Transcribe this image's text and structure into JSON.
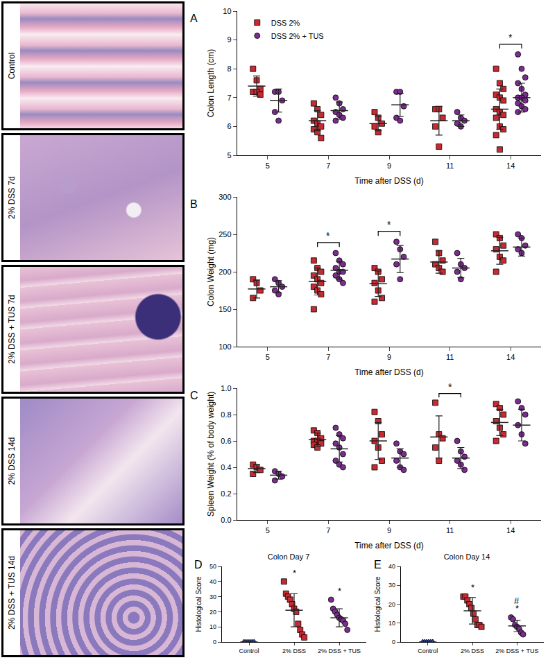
{
  "images": {
    "panels": [
      {
        "label": "Control"
      },
      {
        "label": "2% DSS 7d"
      },
      {
        "label": "2% DSS + TUS 7d"
      },
      {
        "label": "2% DSS 14d"
      },
      {
        "label": "2% DSS + TUS 14d"
      }
    ]
  },
  "chart_data": [
    {
      "type": "scatter",
      "label": "A",
      "x_label": "Time after DSS (d)",
      "y_label": "Colon Length (cm)",
      "categories": [
        "5",
        "7",
        "9",
        "11",
        "14"
      ],
      "ylim": [
        5,
        10
      ],
      "yticks": [
        5,
        6,
        7,
        8,
        9,
        10
      ],
      "legend": "top left",
      "series": [
        {
          "name": "DSS 2%",
          "color": "#c62a32",
          "marker": "square",
          "points": [
            [
              8.0,
              7.6,
              7.3,
              7.2,
              7.2,
              7.1
            ],
            [
              6.8,
              6.6,
              6.4,
              6.2,
              6.1,
              6.0,
              5.9,
              5.8,
              5.6
            ],
            [
              6.5,
              6.3,
              6.1,
              6.0,
              5.8
            ],
            [
              6.6,
              6.6,
              6.3,
              6.0,
              5.3
            ],
            [
              8.0,
              7.5,
              7.3,
              7.1,
              7.0,
              6.9,
              6.6,
              6.5,
              6.4,
              6.3,
              6.0,
              5.9,
              5.7,
              5.2
            ]
          ],
          "values": [
            7.4,
            6.2,
            6.1,
            6.2,
            6.6
          ],
          "error": [
            0.35,
            0.35,
            0.25,
            0.5,
            0.7
          ]
        },
        {
          "name": "DSS 2% + TUS",
          "color": "#7b2d8e",
          "marker": "circle",
          "points": [
            [
              7.2,
              7.2,
              6.9,
              6.5,
              6.2
            ],
            [
              7.0,
              6.8,
              6.6,
              6.5,
              6.4,
              6.3,
              6.2
            ],
            [
              7.2,
              7.2,
              6.7,
              6.3,
              6.2
            ],
            [
              6.5,
              6.3,
              6.2,
              6.1,
              6.0
            ],
            [
              8.5,
              8.0,
              7.7,
              7.5,
              7.3,
              7.1,
              7.0,
              7.0,
              6.9,
              6.8,
              6.7,
              6.6,
              6.5
            ]
          ],
          "values": [
            6.9,
            6.55,
            6.75,
            6.2,
            7.0
          ],
          "error": [
            0.4,
            0.3,
            0.4,
            0.2,
            0.5
          ]
        }
      ],
      "annotations": [
        {
          "x": "14",
          "text": "*"
        }
      ]
    },
    {
      "type": "scatter",
      "label": "B",
      "x_label": "Time after DSS (d)",
      "y_label": "Colon Weight (mg)",
      "categories": [
        "5",
        "7",
        "9",
        "11",
        "14"
      ],
      "ylim": [
        100,
        300
      ],
      "yticks": [
        100,
        150,
        200,
        250,
        300
      ],
      "series": [
        {
          "name": "DSS 2%",
          "color": "#c62a32",
          "marker": "square",
          "points": [
            [
              190,
              185,
              175,
              165
            ],
            [
              215,
              205,
              200,
              195,
              190,
              185,
              180,
              175,
              170,
              150
            ],
            [
              205,
              200,
              190,
              185,
              175,
              165,
              160
            ],
            [
              240,
              225,
              215,
              210,
              205,
              200
            ],
            [
              250,
              245,
              235,
              230,
              220,
              215,
              200
            ]
          ],
          "values": [
            177,
            187,
            184,
            213,
            228
          ],
          "error": [
            12,
            18,
            17,
            15,
            18
          ]
        },
        {
          "name": "DSS 2% + TUS",
          "color": "#7b2d8e",
          "marker": "circle",
          "points": [
            [
              190,
              185,
              180,
              175,
              170
            ],
            [
              225,
              215,
              210,
              205,
              200,
              200,
              195,
              190,
              185
            ],
            [
              240,
              230,
              220,
              210,
              190
            ],
            [
              225,
              210,
              205,
              200,
              190
            ],
            [
              250,
              245,
              235,
              230,
              225
            ]
          ],
          "values": [
            180,
            202,
            217,
            205,
            233
          ],
          "error": [
            8,
            12,
            18,
            13,
            12
          ]
        }
      ],
      "annotations": [
        {
          "x": "7",
          "text": "*"
        },
        {
          "x": "9",
          "text": "*"
        }
      ]
    },
    {
      "type": "scatter",
      "label": "C",
      "x_label": "Time after DSS (d)",
      "y_label": "Spleen Weight (% of body weight)",
      "categories": [
        "5",
        "7",
        "9",
        "11",
        "14"
      ],
      "ylim": [
        0,
        1
      ],
      "yticks": [
        {
          "value": 0,
          "label": "0.0"
        },
        0.2,
        0.4,
        0.6,
        0.8,
        {
          "value": 1,
          "label": "1.0"
        }
      ],
      "series": [
        {
          "name": "DSS 2%",
          "color": "#c62a32",
          "marker": "square",
          "points": [
            [
              0.42,
              0.4,
              0.38,
              0.35
            ],
            [
              0.68,
              0.66,
              0.62,
              0.6,
              0.6,
              0.58,
              0.57,
              0.55
            ],
            [
              0.82,
              0.75,
              0.65,
              0.6,
              0.55,
              0.45,
              0.4
            ],
            [
              0.89,
              0.65,
              0.62,
              0.55,
              0.45
            ],
            [
              0.88,
              0.85,
              0.8,
              0.75,
              0.7,
              0.65,
              0.6
            ]
          ],
          "values": [
            0.39,
            0.61,
            0.6,
            0.63,
            0.74
          ],
          "error": [
            0.03,
            0.05,
            0.14,
            0.16,
            0.1
          ]
        },
        {
          "name": "DSS 2% + TUS",
          "color": "#7b2d8e",
          "marker": "circle",
          "points": [
            [
              0.37,
              0.35,
              0.33,
              0.3
            ],
            [
              0.7,
              0.65,
              0.62,
              0.58,
              0.55,
              0.5,
              0.45,
              0.42,
              0.4
            ],
            [
              0.58,
              0.52,
              0.5,
              0.45,
              0.4,
              0.38
            ],
            [
              0.6,
              0.52,
              0.48,
              0.45,
              0.42,
              0.38
            ],
            [
              0.9,
              0.85,
              0.8,
              0.72,
              0.65,
              0.58
            ]
          ],
          "values": [
            0.34,
            0.54,
            0.47,
            0.47,
            0.72
          ],
          "error": [
            0.03,
            0.1,
            0.07,
            0.08,
            0.12
          ]
        }
      ],
      "annotations": [
        {
          "x": "11",
          "text": "*"
        }
      ]
    },
    {
      "type": "dot",
      "label": "D",
      "title": "Colon Day 7",
      "y_label": "Histological Score",
      "categories": [
        "Control",
        "2% DSS",
        "2% DSS + TUS"
      ],
      "ylim": [
        0,
        50
      ],
      "yticks": [
        0,
        10,
        20,
        30,
        40,
        50
      ],
      "colors": [
        "#3b4a9c",
        "#c62a32",
        "#7b2d8e"
      ],
      "markers": [
        "triangle-up",
        "square",
        "circle"
      ],
      "points": [
        [
          0,
          0,
          0,
          0,
          0,
          0
        ],
        [
          40,
          32,
          30,
          28,
          25,
          22,
          20,
          12,
          8,
          5,
          3
        ],
        [
          28,
          22,
          20,
          18,
          16,
          15,
          14,
          12,
          8
        ]
      ],
      "values": [
        0,
        21,
        16
      ],
      "error": [
        0,
        11,
        6
      ],
      "annotations": [
        {
          "x": "2% DSS",
          "text": "*"
        },
        {
          "x": "2% DSS + TUS",
          "text": "*"
        }
      ]
    },
    {
      "type": "dot",
      "label": "E",
      "title": "Colon Day 14",
      "y_label": "Histological Score",
      "categories": [
        "Control",
        "2% DSS",
        "2% DSS + TUS"
      ],
      "ylim": [
        0,
        40
      ],
      "yticks": [
        0,
        10,
        20,
        30,
        40
      ],
      "colors": [
        "#3b4a9c",
        "#c62a32",
        "#7b2d8e"
      ],
      "markers": [
        "triangle-up",
        "square",
        "circle"
      ],
      "points": [
        [
          0,
          0,
          0,
          0,
          0,
          0
        ],
        [
          24,
          24,
          22,
          20,
          18,
          15,
          12,
          9,
          9,
          8
        ],
        [
          13,
          12,
          9,
          8,
          7,
          5,
          4
        ]
      ],
      "values": [
        0,
        16.5,
        8.5
      ],
      "error": [
        0,
        7,
        3
      ],
      "annotations": [
        {
          "x": "2% DSS",
          "text": "*"
        },
        {
          "x": "2% DSS + TUS",
          "text": "*"
        },
        {
          "x": "2% DSS + TUS",
          "text": "#"
        }
      ]
    }
  ]
}
